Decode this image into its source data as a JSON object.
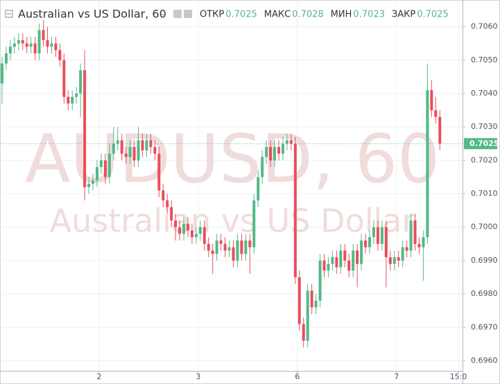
{
  "header": {
    "title": "Australian vs US Dollar, 60",
    "fields": [
      {
        "label": "ОТКР",
        "value": "0.7025"
      },
      {
        "label": "МАКС",
        "value": "0.7028"
      },
      {
        "label": "МИН",
        "value": "0.7023"
      },
      {
        "label": "ЗАКР",
        "value": "0.7025"
      }
    ]
  },
  "chart_data": {
    "type": "candlestick",
    "watermark": "AUDUSD, 60",
    "watermark_sub": "Australian vs US Dollar",
    "up_color": "#53b987",
    "down_color": "#eb4d5c",
    "grid": true,
    "last_price": {
      "value": 0.7025,
      "label": "0.7025"
    },
    "xlim": [
      -0.5,
      111.5
    ],
    "xticks": [
      {
        "value": 23.5,
        "label": "2"
      },
      {
        "value": 47.5,
        "label": "3"
      },
      {
        "value": 71.5,
        "label": "6"
      },
      {
        "value": 95.5,
        "label": "7"
      },
      {
        "value": 110.5,
        "label": "15:0"
      }
    ],
    "ylim": [
      0.6957,
      0.7068
    ],
    "yticks": [
      {
        "value": 0.696,
        "label": "0.6960"
      },
      {
        "value": 0.697,
        "label": "0.6970"
      },
      {
        "value": 0.698,
        "label": "0.6980"
      },
      {
        "value": 0.699,
        "label": "0.6990"
      },
      {
        "value": 0.7,
        "label": "0.7000"
      },
      {
        "value": 0.701,
        "label": "0.7010"
      },
      {
        "value": 0.702,
        "label": "0.7020"
      },
      {
        "value": 0.703,
        "label": "0.7030"
      },
      {
        "value": 0.704,
        "label": "0.7040"
      },
      {
        "value": 0.705,
        "label": "0.7050"
      },
      {
        "value": 0.706,
        "label": "0.7060"
      }
    ],
    "x": [
      0,
      1,
      2,
      3,
      4,
      5,
      6,
      7,
      8,
      9,
      10,
      11,
      12,
      13,
      14,
      15,
      16,
      17,
      18,
      19,
      20,
      21,
      22,
      23,
      24,
      25,
      26,
      27,
      28,
      29,
      30,
      31,
      32,
      33,
      34,
      35,
      36,
      37,
      38,
      39,
      40,
      41,
      42,
      43,
      44,
      45,
      46,
      47,
      48,
      49,
      50,
      51,
      52,
      53,
      54,
      55,
      56,
      57,
      58,
      59,
      60,
      61,
      62,
      63,
      64,
      65,
      66,
      67,
      68,
      69,
      70,
      71,
      72,
      73,
      74,
      75,
      76,
      77,
      78,
      79,
      80,
      81,
      82,
      83,
      84,
      85,
      86,
      87,
      88,
      89,
      90,
      91,
      92,
      93,
      94,
      95,
      96,
      97,
      98,
      99,
      100,
      101,
      102,
      103,
      104,
      105,
      106
    ],
    "open": [
      0.7043,
      0.7049,
      0.7052,
      0.7054,
      0.7055,
      0.7056,
      0.7055,
      0.7054,
      0.7055,
      0.7052,
      0.7059,
      0.7056,
      0.7054,
      0.7055,
      0.7053,
      0.705,
      0.7039,
      0.7037,
      0.7039,
      0.704,
      0.7047,
      0.7012,
      0.7013,
      0.7014,
      0.7018,
      0.702,
      0.7015,
      0.7022,
      0.7025,
      0.7026,
      0.7022,
      0.7021,
      0.7024,
      0.702,
      0.7026,
      0.7023,
      0.7026,
      0.7024,
      0.7022,
      0.7011,
      0.7008,
      0.7006,
      0.7002,
      0.7,
      0.6998,
      0.7001,
      0.6999,
      0.6997,
      0.6998,
      0.7,
      0.6995,
      0.6993,
      0.6992,
      0.6996,
      0.6995,
      0.6993,
      0.6994,
      0.699,
      0.6996,
      0.6992,
      0.6996,
      0.6994,
      0.7008,
      0.7015,
      0.7021,
      0.7024,
      0.702,
      0.7024,
      0.7022,
      0.7025,
      0.7026,
      0.7025,
      0.6985,
      0.6971,
      0.6966,
      0.6981,
      0.6976,
      0.6978,
      0.699,
      0.6987,
      0.6989,
      0.6991,
      0.6988,
      0.6993,
      0.699,
      0.6987,
      0.6993,
      0.6989,
      0.6996,
      0.6994,
      0.6997,
      0.7,
      0.6995,
      0.7,
      0.6991,
      0.6989,
      0.6991,
      0.699,
      0.6994,
      0.6993,
      0.7002,
      0.6995,
      0.6994,
      0.6997,
      0.7041,
      0.7035,
      0.7033
    ],
    "high": [
      0.7051,
      0.7054,
      0.7056,
      0.7057,
      0.7058,
      0.7058,
      0.7057,
      0.7057,
      0.7057,
      0.7061,
      0.7062,
      0.706,
      0.7057,
      0.7057,
      0.7055,
      0.7052,
      0.7041,
      0.7041,
      0.7042,
      0.7049,
      0.7053,
      0.7015,
      0.7016,
      0.702,
      0.7022,
      0.7022,
      0.7025,
      0.703,
      0.703,
      0.7028,
      0.7024,
      0.7026,
      0.7026,
      0.703,
      0.7028,
      0.7028,
      0.7028,
      0.7026,
      0.7024,
      0.7013,
      0.701,
      0.7008,
      0.7004,
      0.7002,
      0.7003,
      0.7003,
      0.7001,
      0.7,
      0.7002,
      0.7002,
      0.6997,
      0.6995,
      0.6998,
      0.6998,
      0.6997,
      0.6996,
      0.6996,
      0.6998,
      0.6998,
      0.6998,
      0.6998,
      0.701,
      0.7017,
      0.7023,
      0.7026,
      0.7026,
      0.7026,
      0.7026,
      0.7027,
      0.7028,
      0.7028,
      0.7027,
      0.6987,
      0.6973,
      0.6983,
      0.6983,
      0.698,
      0.6992,
      0.6992,
      0.6991,
      0.6993,
      0.6993,
      0.6995,
      0.6995,
      0.6992,
      0.6995,
      0.6995,
      0.6998,
      0.6998,
      0.6999,
      0.7002,
      0.7002,
      0.7002,
      0.7002,
      0.6993,
      0.6993,
      0.6993,
      0.6996,
      0.6996,
      0.7004,
      0.7004,
      0.6997,
      0.6999,
      0.7049,
      0.7044,
      0.7039,
      0.7035
    ],
    "low": [
      0.7037,
      0.7047,
      0.705,
      0.7052,
      0.7053,
      0.7053,
      0.7052,
      0.7052,
      0.705,
      0.705,
      0.7054,
      0.7052,
      0.7052,
      0.7051,
      0.7048,
      0.7037,
      0.7035,
      0.7035,
      0.7037,
      0.7033,
      0.7008,
      0.701,
      0.7011,
      0.7012,
      0.7016,
      0.7013,
      0.7013,
      0.702,
      0.7023,
      0.702,
      0.7019,
      0.7019,
      0.7018,
      0.7018,
      0.7021,
      0.7021,
      0.7022,
      0.702,
      0.7009,
      0.7006,
      0.7004,
      0.7,
      0.6996,
      0.6996,
      0.6996,
      0.6997,
      0.6995,
      0.6995,
      0.6996,
      0.6993,
      0.6991,
      0.6986,
      0.699,
      0.6993,
      0.6991,
      0.6991,
      0.6988,
      0.6988,
      0.699,
      0.699,
      0.6986,
      0.6992,
      0.7006,
      0.7013,
      0.7019,
      0.7018,
      0.7018,
      0.702,
      0.702,
      0.7023,
      0.7023,
      0.6983,
      0.6969,
      0.6964,
      0.6964,
      0.6974,
      0.6974,
      0.6976,
      0.6985,
      0.6985,
      0.6987,
      0.6986,
      0.6986,
      0.6988,
      0.6985,
      0.6985,
      0.6982,
      0.6987,
      0.6992,
      0.6992,
      0.6995,
      0.6993,
      0.6993,
      0.6982,
      0.6987,
      0.6987,
      0.6988,
      0.6988,
      0.6991,
      0.6991,
      0.6993,
      0.6992,
      0.6984,
      0.6995,
      0.7033,
      0.7031,
      0.7023
    ],
    "close": [
      0.7049,
      0.7052,
      0.7054,
      0.7055,
      0.7056,
      0.7055,
      0.7054,
      0.7055,
      0.7052,
      0.7059,
      0.7056,
      0.7054,
      0.7055,
      0.7053,
      0.705,
      0.7039,
      0.7037,
      0.7039,
      0.704,
      0.7047,
      0.7012,
      0.7013,
      0.7014,
      0.7018,
      0.702,
      0.7015,
      0.7022,
      0.7025,
      0.7026,
      0.7022,
      0.7021,
      0.7024,
      0.702,
      0.7026,
      0.7023,
      0.7026,
      0.7024,
      0.7022,
      0.7011,
      0.7008,
      0.7006,
      0.7002,
      0.7,
      0.6998,
      0.7001,
      0.6999,
      0.6997,
      0.6998,
      0.7,
      0.6995,
      0.6993,
      0.6992,
      0.6996,
      0.6995,
      0.6993,
      0.6994,
      0.699,
      0.6996,
      0.6992,
      0.6996,
      0.6994,
      0.7008,
      0.7015,
      0.7021,
      0.7024,
      0.702,
      0.7024,
      0.7022,
      0.7025,
      0.7026,
      0.7025,
      0.6985,
      0.6971,
      0.6966,
      0.6981,
      0.6976,
      0.6978,
      0.699,
      0.6987,
      0.6989,
      0.6991,
      0.6988,
      0.6993,
      0.699,
      0.6987,
      0.6993,
      0.6989,
      0.6996,
      0.6994,
      0.6997,
      0.7,
      0.6995,
      0.7,
      0.6991,
      0.6989,
      0.6991,
      0.699,
      0.6994,
      0.6993,
      0.7002,
      0.6995,
      0.6994,
      0.6997,
      0.7041,
      0.7035,
      0.7033,
      0.7025
    ]
  }
}
